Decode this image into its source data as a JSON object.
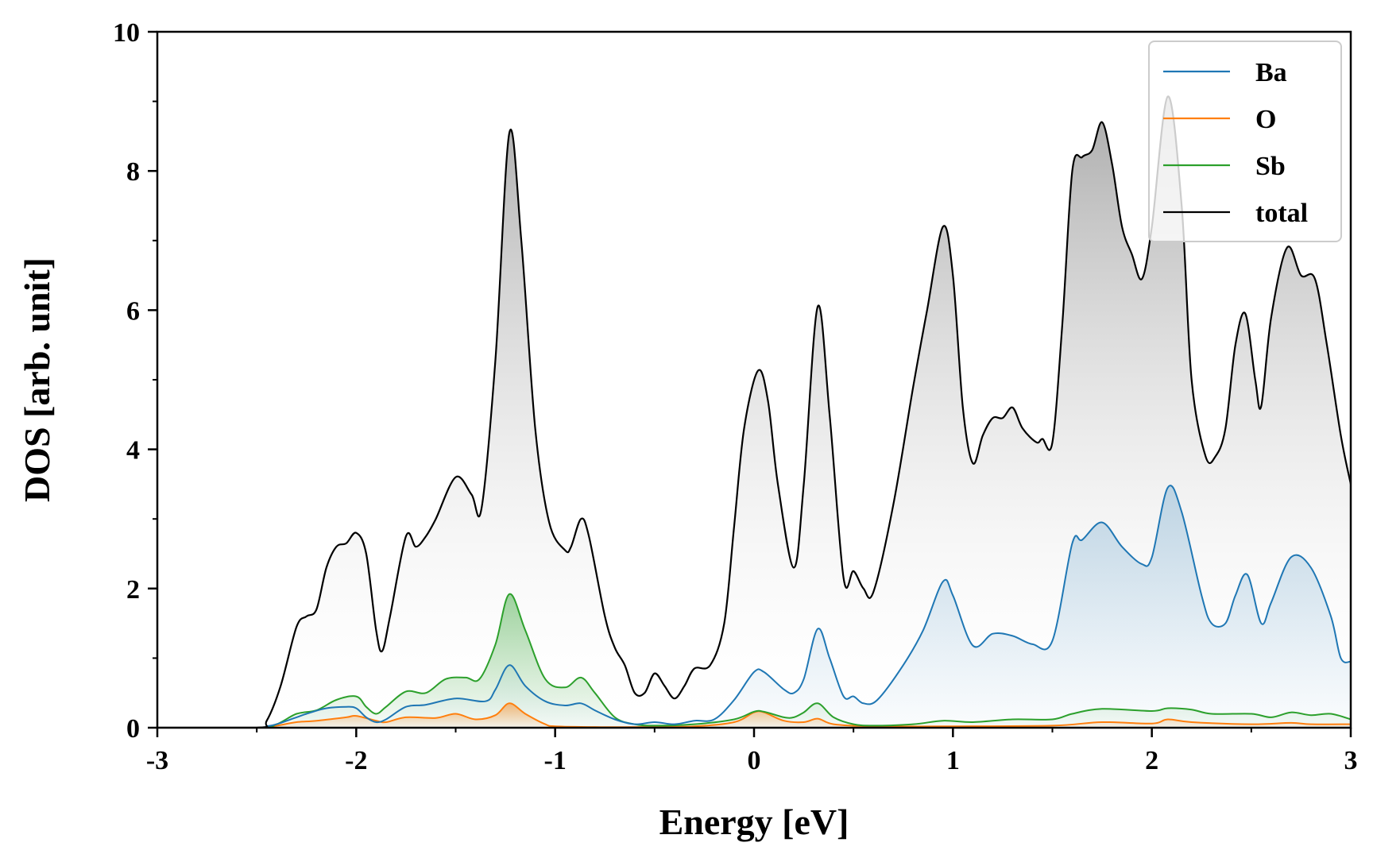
{
  "chart_data": {
    "type": "area",
    "title": "",
    "xlabel": "Energy [eV]",
    "ylabel": "DOS [arb. unit]",
    "xlim": [
      -3,
      3
    ],
    "ylim": [
      0,
      10
    ],
    "xticks": [
      -3,
      -2,
      -1,
      0,
      1,
      2,
      3
    ],
    "xtick_labels": [
      "-3",
      "-2",
      "-1",
      "0",
      "1",
      "2",
      "3"
    ],
    "yticks": [
      0,
      2,
      4,
      6,
      8,
      10
    ],
    "ytick_labels": [
      "0",
      "2",
      "4",
      "6",
      "8",
      "10"
    ],
    "grid": false,
    "legend_position": "top-right",
    "series": [
      {
        "name": "Ba",
        "color": "#1f77b4",
        "fill": "gradient",
        "points": [
          [
            -3,
            0
          ],
          [
            -2.5,
            0
          ],
          [
            -2.45,
            0.02
          ],
          [
            -2.4,
            0.05
          ],
          [
            -2.3,
            0.15
          ],
          [
            -2.25,
            0.2
          ],
          [
            -2.15,
            0.28
          ],
          [
            -2.05,
            0.3
          ],
          [
            -2.0,
            0.28
          ],
          [
            -1.95,
            0.15
          ],
          [
            -1.9,
            0.08
          ],
          [
            -1.85,
            0.12
          ],
          [
            -1.75,
            0.3
          ],
          [
            -1.65,
            0.33
          ],
          [
            -1.5,
            0.42
          ],
          [
            -1.35,
            0.38
          ],
          [
            -1.3,
            0.55
          ],
          [
            -1.23,
            0.9
          ],
          [
            -1.15,
            0.6
          ],
          [
            -1.05,
            0.38
          ],
          [
            -0.95,
            0.32
          ],
          [
            -0.87,
            0.35
          ],
          [
            -0.8,
            0.25
          ],
          [
            -0.7,
            0.12
          ],
          [
            -0.6,
            0.05
          ],
          [
            -0.5,
            0.08
          ],
          [
            -0.4,
            0.05
          ],
          [
            -0.3,
            0.1
          ],
          [
            -0.2,
            0.12
          ],
          [
            -0.1,
            0.4
          ],
          [
            0.0,
            0.8
          ],
          [
            0.05,
            0.8
          ],
          [
            0.15,
            0.55
          ],
          [
            0.2,
            0.5
          ],
          [
            0.25,
            0.7
          ],
          [
            0.32,
            1.42
          ],
          [
            0.38,
            1.0
          ],
          [
            0.45,
            0.45
          ],
          [
            0.5,
            0.45
          ],
          [
            0.55,
            0.35
          ],
          [
            0.62,
            0.4
          ],
          [
            0.75,
            0.9
          ],
          [
            0.85,
            1.4
          ],
          [
            0.95,
            2.1
          ],
          [
            1.0,
            1.9
          ],
          [
            1.1,
            1.18
          ],
          [
            1.2,
            1.35
          ],
          [
            1.3,
            1.32
          ],
          [
            1.4,
            1.2
          ],
          [
            1.5,
            1.25
          ],
          [
            1.6,
            2.65
          ],
          [
            1.65,
            2.7
          ],
          [
            1.75,
            2.95
          ],
          [
            1.85,
            2.6
          ],
          [
            1.95,
            2.35
          ],
          [
            2.0,
            2.45
          ],
          [
            2.08,
            3.45
          ],
          [
            2.15,
            3.1
          ],
          [
            2.25,
            1.9
          ],
          [
            2.3,
            1.5
          ],
          [
            2.37,
            1.5
          ],
          [
            2.42,
            1.9
          ],
          [
            2.48,
            2.2
          ],
          [
            2.55,
            1.5
          ],
          [
            2.6,
            1.8
          ],
          [
            2.7,
            2.45
          ],
          [
            2.8,
            2.3
          ],
          [
            2.9,
            1.6
          ],
          [
            2.95,
            1.0
          ],
          [
            3.0,
            0.95
          ]
        ]
      },
      {
        "name": "O",
        "color": "#ff7f0e",
        "fill": "gradient",
        "points": [
          [
            -3,
            0
          ],
          [
            -2.5,
            0
          ],
          [
            -2.4,
            0.03
          ],
          [
            -2.3,
            0.08
          ],
          [
            -2.2,
            0.1
          ],
          [
            -2.05,
            0.15
          ],
          [
            -2.0,
            0.17
          ],
          [
            -1.9,
            0.1
          ],
          [
            -1.85,
            0.08
          ],
          [
            -1.75,
            0.15
          ],
          [
            -1.6,
            0.14
          ],
          [
            -1.5,
            0.2
          ],
          [
            -1.4,
            0.12
          ],
          [
            -1.3,
            0.18
          ],
          [
            -1.23,
            0.35
          ],
          [
            -1.15,
            0.2
          ],
          [
            -1.05,
            0.05
          ],
          [
            -1.0,
            0.02
          ],
          [
            -0.8,
            0.01
          ],
          [
            -0.6,
            0.01
          ],
          [
            -0.3,
            0.02
          ],
          [
            -0.1,
            0.08
          ],
          [
            0.0,
            0.22
          ],
          [
            0.05,
            0.22
          ],
          [
            0.15,
            0.1
          ],
          [
            0.25,
            0.08
          ],
          [
            0.32,
            0.13
          ],
          [
            0.4,
            0.05
          ],
          [
            0.6,
            0.02
          ],
          [
            1.0,
            0.02
          ],
          [
            1.5,
            0.03
          ],
          [
            1.75,
            0.08
          ],
          [
            2.0,
            0.06
          ],
          [
            2.08,
            0.12
          ],
          [
            2.2,
            0.08
          ],
          [
            2.5,
            0.05
          ],
          [
            2.7,
            0.07
          ],
          [
            2.8,
            0.05
          ],
          [
            3.0,
            0.05
          ]
        ]
      },
      {
        "name": "Sb",
        "color": "#2ca02c",
        "fill": "gradient",
        "points": [
          [
            -3,
            0
          ],
          [
            -2.5,
            0
          ],
          [
            -2.4,
            0.05
          ],
          [
            -2.3,
            0.2
          ],
          [
            -2.2,
            0.25
          ],
          [
            -2.1,
            0.4
          ],
          [
            -2.0,
            0.45
          ],
          [
            -1.95,
            0.3
          ],
          [
            -1.9,
            0.2
          ],
          [
            -1.85,
            0.3
          ],
          [
            -1.75,
            0.52
          ],
          [
            -1.65,
            0.5
          ],
          [
            -1.55,
            0.7
          ],
          [
            -1.45,
            0.72
          ],
          [
            -1.38,
            0.7
          ],
          [
            -1.3,
            1.2
          ],
          [
            -1.23,
            1.92
          ],
          [
            -1.15,
            1.4
          ],
          [
            -1.05,
            0.7
          ],
          [
            -0.95,
            0.58
          ],
          [
            -0.87,
            0.72
          ],
          [
            -0.8,
            0.5
          ],
          [
            -0.7,
            0.15
          ],
          [
            -0.6,
            0.05
          ],
          [
            -0.5,
            0.03
          ],
          [
            -0.3,
            0.05
          ],
          [
            -0.1,
            0.12
          ],
          [
            0.0,
            0.23
          ],
          [
            0.05,
            0.23
          ],
          [
            0.15,
            0.15
          ],
          [
            0.2,
            0.15
          ],
          [
            0.25,
            0.22
          ],
          [
            0.32,
            0.35
          ],
          [
            0.4,
            0.15
          ],
          [
            0.5,
            0.05
          ],
          [
            0.6,
            0.03
          ],
          [
            0.8,
            0.05
          ],
          [
            0.95,
            0.1
          ],
          [
            1.1,
            0.08
          ],
          [
            1.3,
            0.12
          ],
          [
            1.5,
            0.12
          ],
          [
            1.6,
            0.2
          ],
          [
            1.75,
            0.27
          ],
          [
            2.0,
            0.24
          ],
          [
            2.08,
            0.28
          ],
          [
            2.2,
            0.26
          ],
          [
            2.3,
            0.2
          ],
          [
            2.5,
            0.2
          ],
          [
            2.6,
            0.15
          ],
          [
            2.7,
            0.22
          ],
          [
            2.8,
            0.18
          ],
          [
            2.9,
            0.2
          ],
          [
            3.0,
            0.12
          ]
        ]
      },
      {
        "name": "total",
        "color": "#000000",
        "fill": "gradient",
        "points": [
          [
            -3,
            0
          ],
          [
            -2.5,
            0
          ],
          [
            -2.45,
            0.1
          ],
          [
            -2.38,
            0.6
          ],
          [
            -2.3,
            1.45
          ],
          [
            -2.25,
            1.6
          ],
          [
            -2.2,
            1.7
          ],
          [
            -2.15,
            2.3
          ],
          [
            -2.1,
            2.6
          ],
          [
            -2.05,
            2.65
          ],
          [
            -2.0,
            2.8
          ],
          [
            -1.95,
            2.5
          ],
          [
            -1.9,
            1.4
          ],
          [
            -1.87,
            1.1
          ],
          [
            -1.83,
            1.6
          ],
          [
            -1.75,
            2.75
          ],
          [
            -1.7,
            2.6
          ],
          [
            -1.65,
            2.75
          ],
          [
            -1.6,
            3.0
          ],
          [
            -1.5,
            3.6
          ],
          [
            -1.42,
            3.35
          ],
          [
            -1.37,
            3.15
          ],
          [
            -1.3,
            5.3
          ],
          [
            -1.23,
            8.55
          ],
          [
            -1.17,
            7.0
          ],
          [
            -1.1,
            4.3
          ],
          [
            -1.03,
            2.95
          ],
          [
            -0.95,
            2.55
          ],
          [
            -0.92,
            2.6
          ],
          [
            -0.87,
            3.0
          ],
          [
            -0.83,
            2.75
          ],
          [
            -0.75,
            1.6
          ],
          [
            -0.7,
            1.15
          ],
          [
            -0.65,
            0.9
          ],
          [
            -0.6,
            0.5
          ],
          [
            -0.55,
            0.5
          ],
          [
            -0.5,
            0.78
          ],
          [
            -0.45,
            0.6
          ],
          [
            -0.4,
            0.42
          ],
          [
            -0.35,
            0.6
          ],
          [
            -0.3,
            0.85
          ],
          [
            -0.22,
            0.9
          ],
          [
            -0.15,
            1.5
          ],
          [
            -0.1,
            2.9
          ],
          [
            -0.05,
            4.3
          ],
          [
            0.02,
            5.13
          ],
          [
            0.07,
            4.7
          ],
          [
            0.12,
            3.5
          ],
          [
            0.2,
            2.3
          ],
          [
            0.25,
            3.5
          ],
          [
            0.32,
            6.05
          ],
          [
            0.38,
            4.5
          ],
          [
            0.45,
            2.15
          ],
          [
            0.5,
            2.25
          ],
          [
            0.55,
            2.0
          ],
          [
            0.6,
            1.95
          ],
          [
            0.7,
            3.2
          ],
          [
            0.8,
            4.9
          ],
          [
            0.87,
            6.0
          ],
          [
            0.95,
            7.2
          ],
          [
            1.0,
            6.5
          ],
          [
            1.05,
            4.6
          ],
          [
            1.1,
            3.8
          ],
          [
            1.15,
            4.2
          ],
          [
            1.2,
            4.45
          ],
          [
            1.25,
            4.45
          ],
          [
            1.3,
            4.6
          ],
          [
            1.35,
            4.3
          ],
          [
            1.42,
            4.1
          ],
          [
            1.45,
            4.15
          ],
          [
            1.5,
            4.1
          ],
          [
            1.55,
            5.8
          ],
          [
            1.6,
            8.0
          ],
          [
            1.65,
            8.2
          ],
          [
            1.7,
            8.3
          ],
          [
            1.75,
            8.7
          ],
          [
            1.8,
            8.1
          ],
          [
            1.85,
            7.2
          ],
          [
            1.9,
            6.8
          ],
          [
            1.95,
            6.45
          ],
          [
            2.0,
            7.2
          ],
          [
            2.08,
            9.07
          ],
          [
            2.15,
            7.5
          ],
          [
            2.2,
            5.0
          ],
          [
            2.27,
            3.9
          ],
          [
            2.32,
            3.9
          ],
          [
            2.37,
            4.3
          ],
          [
            2.42,
            5.5
          ],
          [
            2.47,
            5.95
          ],
          [
            2.52,
            5.0
          ],
          [
            2.55,
            4.62
          ],
          [
            2.6,
            5.9
          ],
          [
            2.68,
            6.9
          ],
          [
            2.75,
            6.5
          ],
          [
            2.82,
            6.45
          ],
          [
            2.88,
            5.5
          ],
          [
            2.95,
            4.2
          ],
          [
            3.0,
            3.5
          ]
        ]
      }
    ]
  }
}
